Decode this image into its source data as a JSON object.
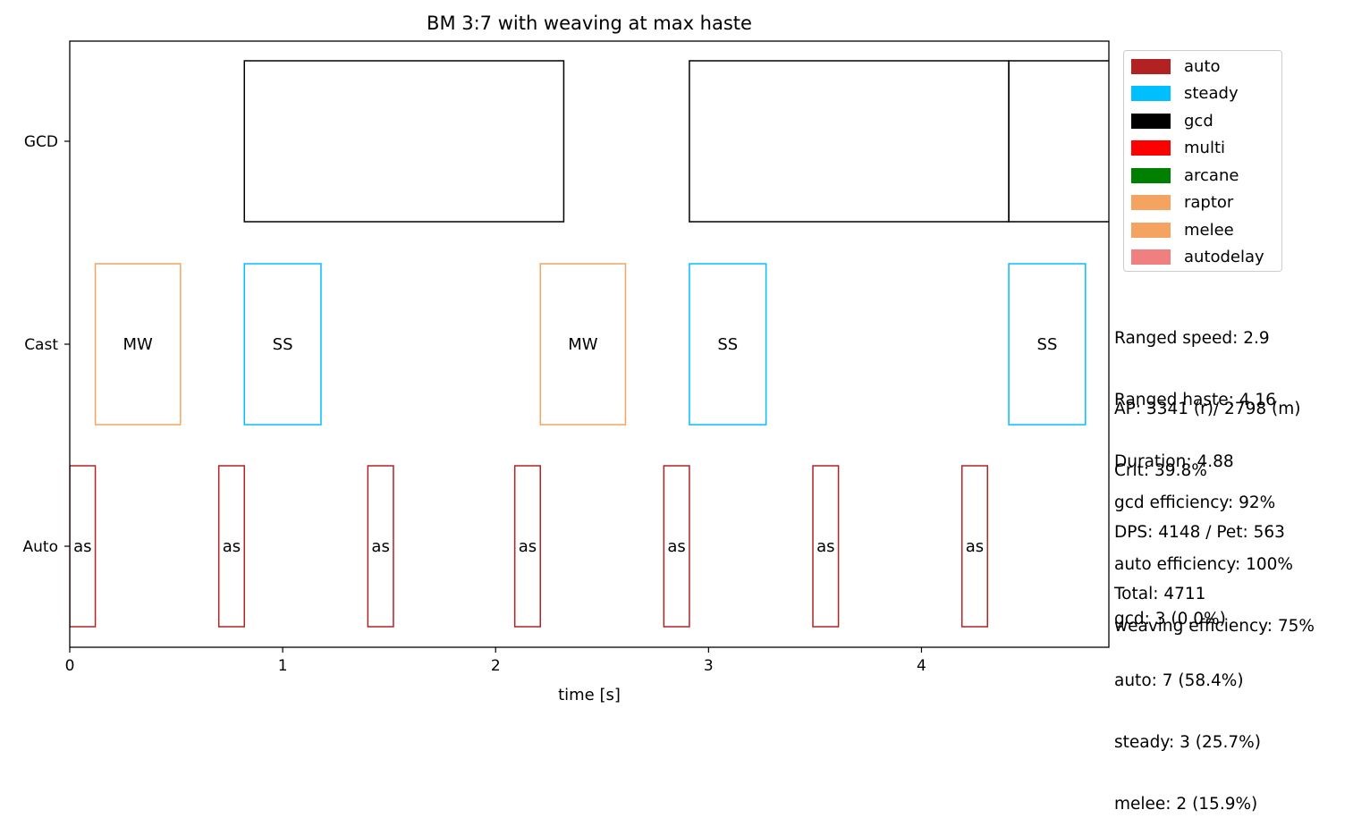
{
  "chart_data": {
    "type": "timeline",
    "title": "BM 3:7 with weaving at max haste",
    "xlabel": "time [s]",
    "xlim": [
      0,
      4.88
    ],
    "x_ticks": [
      0,
      1,
      2,
      3,
      4
    ],
    "x_tick_labels": [
      "0",
      "1",
      "2",
      "3",
      "4"
    ],
    "rows": [
      "GCD",
      "Cast",
      "Auto"
    ],
    "bars": [
      {
        "row": "GCD",
        "start": 0.82,
        "end": 2.32,
        "kind": "gcd",
        "label": ""
      },
      {
        "row": "GCD",
        "start": 2.91,
        "end": 4.41,
        "kind": "gcd",
        "label": ""
      },
      {
        "row": "GCD",
        "start": 4.41,
        "end": 5.91,
        "kind": "gcd",
        "label": ""
      },
      {
        "row": "Cast",
        "start": 0.12,
        "end": 0.52,
        "kind": "melee",
        "label": "MW"
      },
      {
        "row": "Cast",
        "start": 0.82,
        "end": 1.18,
        "kind": "steady",
        "label": "SS"
      },
      {
        "row": "Cast",
        "start": 2.21,
        "end": 2.61,
        "kind": "melee",
        "label": "MW"
      },
      {
        "row": "Cast",
        "start": 2.91,
        "end": 3.27,
        "kind": "steady",
        "label": "SS"
      },
      {
        "row": "Cast",
        "start": 4.41,
        "end": 4.77,
        "kind": "steady",
        "label": "SS"
      },
      {
        "row": "Auto",
        "start": 0.0,
        "end": 0.12,
        "kind": "auto",
        "label": "as"
      },
      {
        "row": "Auto",
        "start": 0.7,
        "end": 0.82,
        "kind": "auto",
        "label": "as"
      },
      {
        "row": "Auto",
        "start": 1.4,
        "end": 1.52,
        "kind": "auto",
        "label": "as"
      },
      {
        "row": "Auto",
        "start": 2.09,
        "end": 2.21,
        "kind": "auto",
        "label": "as"
      },
      {
        "row": "Auto",
        "start": 2.79,
        "end": 2.91,
        "kind": "auto",
        "label": "as"
      },
      {
        "row": "Auto",
        "start": 3.49,
        "end": 3.61,
        "kind": "auto",
        "label": "as"
      },
      {
        "row": "Auto",
        "start": 4.19,
        "end": 4.31,
        "kind": "auto",
        "label": "as"
      }
    ],
    "colors": {
      "auto": "#b22222",
      "steady": "#00bfff",
      "gcd": "#000000",
      "multi": "#ff0000",
      "arcane": "#008000",
      "raptor": "#f4a460",
      "melee": "#f4a460",
      "autodelay": "#f08080"
    },
    "legend": {
      "position": "right",
      "entries": [
        {
          "label": "auto",
          "color": "#b22222"
        },
        {
          "label": "steady",
          "color": "#00bfff"
        },
        {
          "label": "gcd",
          "color": "#000000"
        },
        {
          "label": "multi",
          "color": "#ff0000"
        },
        {
          "label": "arcane",
          "color": "#008000"
        },
        {
          "label": "raptor",
          "color": "#f4a460"
        },
        {
          "label": "melee",
          "color": "#f4a460"
        },
        {
          "label": "autodelay",
          "color": "#f08080"
        }
      ]
    },
    "annotations": {
      "speed": [
        "Ranged speed: 2.9",
        "Ranged haste: 4.16",
        "Duration: 4.88"
      ],
      "stats": [
        "AP: 3341 (r)/ 2798 (m)",
        "Crit: 39.8%",
        "DPS: 4148 / Pet: 563",
        "Total: 4711"
      ],
      "efficiency": [
        "gcd efficiency: 92%",
        "auto efficiency: 100%",
        "weaving efficiency: 75%"
      ],
      "counts": [
        "gcd: 3 (0.0%)",
        "auto: 7 (58.4%)",
        "steady: 3 (25.7%)",
        "melee: 2 (15.9%)"
      ]
    }
  }
}
